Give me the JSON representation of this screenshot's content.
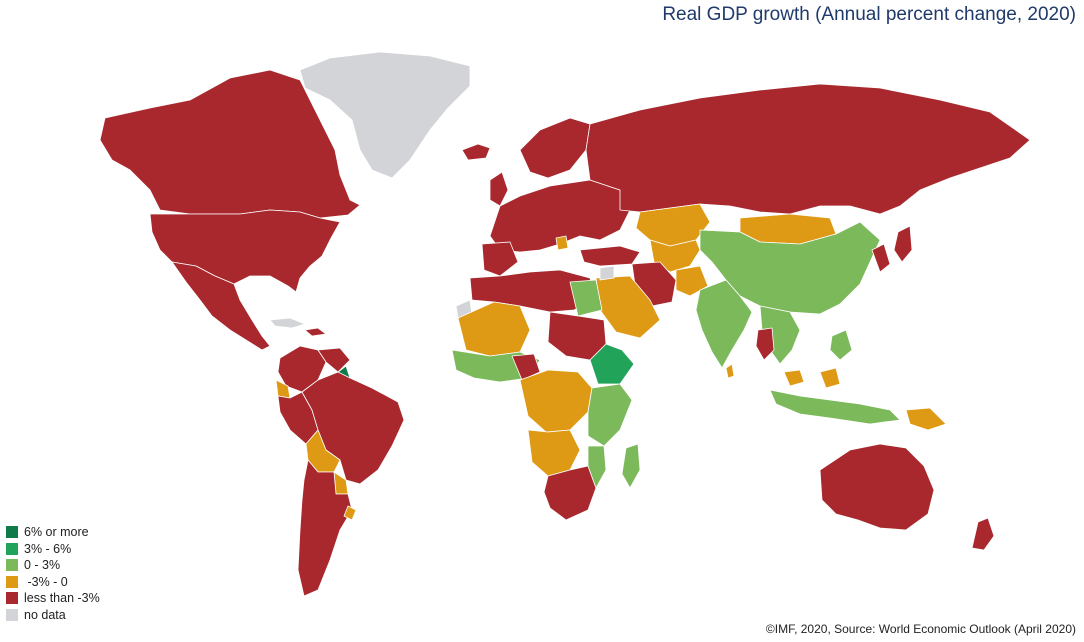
{
  "title": "Real GDP growth (Annual percent change, 2020)",
  "credit": "©IMF, 2020, Source: World Economic Outlook (April 2020)",
  "colors": {
    "six_plus": "#0f7a4a",
    "three_to_six": "#22a35a",
    "zero_to_three": "#7cb95a",
    "neg_three_to_zero": "#df9a15",
    "less_than_neg_three": "#a8282d",
    "no_data": "#d3d4d8"
  },
  "legend": [
    {
      "label": "6% or more",
      "color": "#0f7a4a"
    },
    {
      "label": "3% - 6%",
      "color": "#22a35a"
    },
    {
      "label": "0 - 3%",
      "color": "#7cb95a"
    },
    {
      "label": " -3% - 0",
      "color": "#df9a15"
    },
    {
      "label": "less than -3%",
      "color": "#a8282d"
    },
    {
      "label": "no data",
      "color": "#d3d4d8"
    }
  ]
}
